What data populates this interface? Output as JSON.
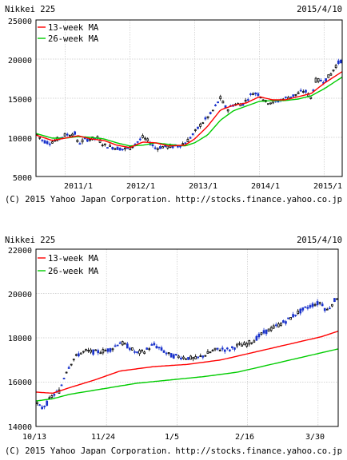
{
  "chart_data": [
    {
      "type": "candlestick",
      "title": "Nikkei 225",
      "date": "2015/4/10",
      "legend": [
        {
          "name": "13-week MA",
          "color": "#ff0000"
        },
        {
          "name": "26-week MA",
          "color": "#00cc00"
        }
      ],
      "legend_position": "top-left",
      "grid": true,
      "yticks": [
        "25000",
        "20000",
        "15000",
        "10000",
        "5000"
      ],
      "ylim": [
        5000,
        25000
      ],
      "xticks": [
        "2011/1",
        "2012/1",
        "2013/1",
        "2014/1",
        "2015/1"
      ],
      "tick_pos": [
        2011.0,
        2012.0,
        2013.0,
        2014.0,
        2015.0
      ],
      "xlim": [
        2010.55,
        2015.28
      ],
      "price_keys": [
        [
          2010.55,
          10500
        ],
        [
          2010.65,
          9600
        ],
        [
          2010.75,
          9300
        ],
        [
          2010.85,
          9600
        ],
        [
          2011.0,
          10300
        ],
        [
          2011.15,
          10500
        ],
        [
          2011.2,
          9200
        ],
        [
          2011.3,
          9700
        ],
        [
          2011.5,
          9900
        ],
        [
          2011.6,
          9000
        ],
        [
          2011.75,
          8700
        ],
        [
          2011.9,
          8500
        ],
        [
          2012.0,
          8600
        ],
        [
          2012.2,
          10000
        ],
        [
          2012.3,
          9400
        ],
        [
          2012.4,
          8600
        ],
        [
          2012.5,
          8800
        ],
        [
          2012.6,
          8800
        ],
        [
          2012.75,
          8900
        ],
        [
          2012.87,
          9400
        ],
        [
          2013.0,
          10600
        ],
        [
          2013.1,
          11700
        ],
        [
          2013.25,
          13000
        ],
        [
          2013.4,
          15000
        ],
        [
          2013.5,
          13500
        ],
        [
          2013.6,
          14200
        ],
        [
          2013.75,
          14300
        ],
        [
          2013.9,
          15700
        ],
        [
          2014.0,
          15500
        ],
        [
          2014.1,
          14500
        ],
        [
          2014.25,
          14500
        ],
        [
          2014.4,
          15000
        ],
        [
          2014.55,
          15400
        ],
        [
          2014.7,
          16000
        ],
        [
          2014.8,
          15000
        ],
        [
          2014.87,
          17300
        ],
        [
          2015.0,
          17200
        ],
        [
          2015.1,
          18000
        ],
        [
          2015.2,
          19400
        ],
        [
          2015.28,
          19900
        ]
      ],
      "ma13_keys": [
        [
          2010.55,
          10300
        ],
        [
          2010.8,
          9600
        ],
        [
          2011.0,
          9900
        ],
        [
          2011.2,
          10200
        ],
        [
          2011.4,
          9800
        ],
        [
          2011.6,
          9600
        ],
        [
          2011.8,
          9000
        ],
        [
          2012.0,
          8700
        ],
        [
          2012.2,
          9400
        ],
        [
          2012.4,
          9300
        ],
        [
          2012.6,
          8900
        ],
        [
          2012.85,
          9000
        ],
        [
          2013.0,
          9800
        ],
        [
          2013.2,
          11400
        ],
        [
          2013.4,
          13500
        ],
        [
          2013.6,
          14100
        ],
        [
          2013.8,
          14400
        ],
        [
          2014.0,
          15200
        ],
        [
          2014.2,
          14800
        ],
        [
          2014.4,
          14800
        ],
        [
          2014.6,
          15200
        ],
        [
          2014.8,
          15600
        ],
        [
          2015.0,
          16900
        ],
        [
          2015.28,
          18400
        ]
      ],
      "ma26_keys": [
        [
          2010.55,
          10500
        ],
        [
          2010.8,
          9900
        ],
        [
          2011.0,
          9900
        ],
        [
          2011.2,
          10100
        ],
        [
          2011.4,
          10000
        ],
        [
          2011.6,
          9800
        ],
        [
          2011.8,
          9300
        ],
        [
          2012.0,
          8900
        ],
        [
          2012.2,
          9000
        ],
        [
          2012.4,
          9300
        ],
        [
          2012.6,
          9100
        ],
        [
          2012.85,
          8900
        ],
        [
          2013.0,
          9300
        ],
        [
          2013.2,
          10300
        ],
        [
          2013.4,
          12200
        ],
        [
          2013.6,
          13400
        ],
        [
          2013.8,
          14000
        ],
        [
          2014.0,
          14600
        ],
        [
          2014.2,
          14700
        ],
        [
          2014.4,
          14700
        ],
        [
          2014.6,
          14900
        ],
        [
          2014.8,
          15300
        ],
        [
          2015.0,
          16200
        ],
        [
          2015.28,
          17700
        ]
      ],
      "candle_count": 122,
      "copyright": "(C) 2015 Yahoo Japan Corporation.",
      "source": "http://stocks.finance.yahoo.co.jp"
    },
    {
      "type": "candlestick",
      "title": "Nikkei 225",
      "date": "2015/4/10",
      "legend": [
        {
          "name": "13-week MA",
          "color": "#ff0000"
        },
        {
          "name": "26-week MA",
          "color": "#00cc00"
        }
      ],
      "legend_position": "top-left",
      "grid": true,
      "yticks": [
        "22000",
        "20000",
        "18000",
        "16000",
        "14000"
      ],
      "ylim": [
        14000,
        22000
      ],
      "xticks": [
        "10/13",
        "11/24",
        "1/5",
        "2/16",
        "3/30"
      ],
      "tick_pos": [
        0,
        42,
        84,
        126,
        168
      ],
      "xlim": [
        0,
        180
      ],
      "price_keys": [
        [
          0,
          15100
        ],
        [
          3,
          14800
        ],
        [
          6,
          15000
        ],
        [
          10,
          15400
        ],
        [
          14,
          15600
        ],
        [
          18,
          16500
        ],
        [
          22,
          17000
        ],
        [
          26,
          17300
        ],
        [
          30,
          17400
        ],
        [
          35,
          17350
        ],
        [
          40,
          17400
        ],
        [
          45,
          17500
        ],
        [
          50,
          17800
        ],
        [
          55,
          17600
        ],
        [
          60,
          17300
        ],
        [
          65,
          17400
        ],
        [
          70,
          17700
        ],
        [
          75,
          17450
        ],
        [
          80,
          17200
        ],
        [
          85,
          17150
        ],
        [
          90,
          17100
        ],
        [
          95,
          17050
        ],
        [
          100,
          17200
        ],
        [
          105,
          17400
        ],
        [
          110,
          17500
        ],
        [
          115,
          17450
        ],
        [
          120,
          17650
        ],
        [
          125,
          17700
        ],
        [
          130,
          17900
        ],
        [
          135,
          18200
        ],
        [
          140,
          18400
        ],
        [
          145,
          18600
        ],
        [
          150,
          18800
        ],
        [
          155,
          19100
        ],
        [
          160,
          19300
        ],
        [
          165,
          19500
        ],
        [
          170,
          19600
        ],
        [
          173,
          19200
        ],
        [
          176,
          19500
        ],
        [
          180,
          19900
        ]
      ],
      "ma13_keys": [
        [
          0,
          15550
        ],
        [
          10,
          15500
        ],
        [
          20,
          15750
        ],
        [
          35,
          16100
        ],
        [
          50,
          16500
        ],
        [
          70,
          16700
        ],
        [
          90,
          16800
        ],
        [
          110,
          17000
        ],
        [
          130,
          17350
        ],
        [
          150,
          17700
        ],
        [
          170,
          18050
        ],
        [
          180,
          18300
        ]
      ],
      "ma26_keys": [
        [
          0,
          15150
        ],
        [
          10,
          15250
        ],
        [
          20,
          15450
        ],
        [
          40,
          15700
        ],
        [
          60,
          15950
        ],
        [
          80,
          16100
        ],
        [
          100,
          16250
        ],
        [
          120,
          16450
        ],
        [
          140,
          16800
        ],
        [
          160,
          17150
        ],
        [
          180,
          17500
        ]
      ],
      "candle_count": 124,
      "copyright": "(C) 2015 Yahoo Japan Corporation.",
      "source": "http://stocks.finance.yahoo.co.jp"
    }
  ]
}
